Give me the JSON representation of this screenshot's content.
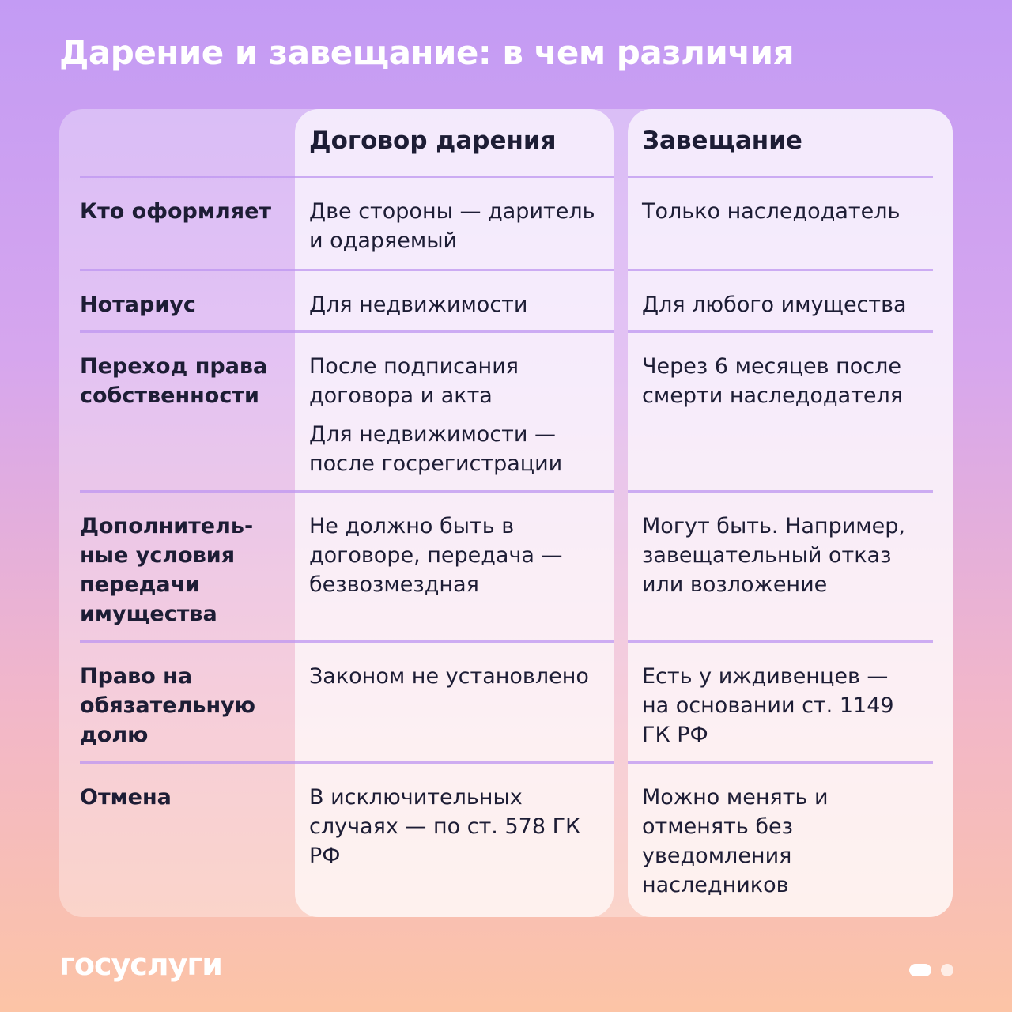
{
  "header": {
    "title": "Дарение и завещание: в чем различия"
  },
  "table": {
    "columns": [
      "Договор дарения",
      "Завещание"
    ],
    "rows": [
      {
        "label": "Кто оформляет",
        "cells": [
          [
            "Две стороны — даритель и одаряемый"
          ],
          [
            "Только наследодатель"
          ]
        ]
      },
      {
        "label": "Нотариус",
        "cells": [
          [
            "Для недвижимости"
          ],
          [
            "Для любого имущества"
          ]
        ]
      },
      {
        "label": "Переход права собственности",
        "cells": [
          [
            "После подписания договора и акта",
            "Для недвижимости — после госрегистрации"
          ],
          [
            "Через 6 месяцев после смерти наследодателя"
          ]
        ]
      },
      {
        "label": "Дополнитель­ные условия передачи имущества",
        "cells": [
          [
            "Не должно быть в договоре, передача — безвозмездная"
          ],
          [
            "Могут быть. Например, завещательный отказ или возложение"
          ]
        ]
      },
      {
        "label": "Право на обязательную долю",
        "cells": [
          [
            "Законом не установлено"
          ],
          [
            "Есть у иждивенцев — на основании ст. 1149 ГК РФ"
          ]
        ]
      },
      {
        "label": "Отмена",
        "cells": [
          [
            "В исключительных случаях — по ст. 578 ГК РФ"
          ],
          [
            "Можно менять и отменять без уведомления наследников"
          ]
        ]
      }
    ]
  },
  "footer": {
    "logo": "госуслуги"
  }
}
